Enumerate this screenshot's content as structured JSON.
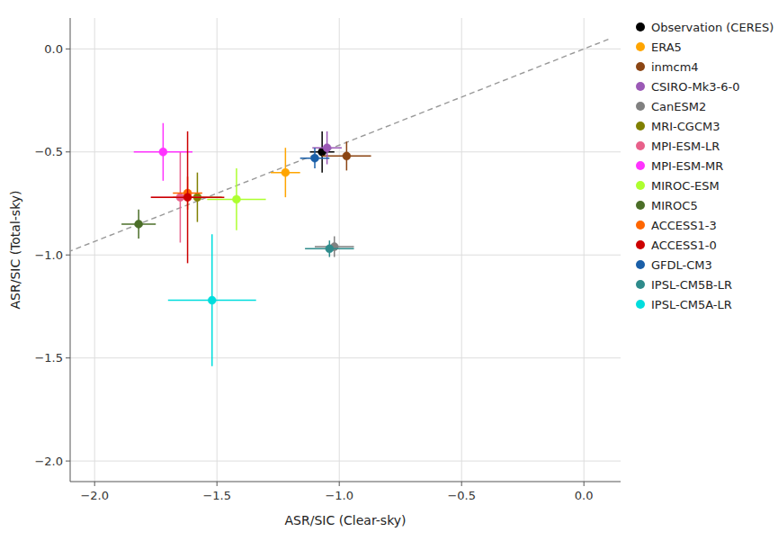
{
  "chart_data": {
    "type": "scatter",
    "xlabel": "ASR/SIC (Clear-sky)",
    "ylabel": "ASR/SIC (Total-sky)",
    "xlim": [
      -2.1,
      0.15
    ],
    "ylim": [
      -2.1,
      0.15
    ],
    "xticks": [
      {
        "value": -2.0,
        "label": "−2.0"
      },
      {
        "value": -1.5,
        "label": "−1.5"
      },
      {
        "value": -1.0,
        "label": "−1.0"
      },
      {
        "value": -0.5,
        "label": "−0.5"
      },
      {
        "value": 0.0,
        "label": "0.0"
      }
    ],
    "yticks": [
      {
        "value": -2.0,
        "label": "−2.0"
      },
      {
        "value": -1.5,
        "label": "−1.5"
      },
      {
        "value": -1.0,
        "label": "−1.0"
      },
      {
        "value": -0.5,
        "label": "−0.5"
      },
      {
        "value": 0.0,
        "label": "0.0"
      }
    ],
    "grid": true,
    "legend": "right",
    "marker": "circle",
    "series": [
      {
        "type": "line",
        "line_style": "dashed",
        "color": "#999999",
        "x": [
          0.1,
          -2.1
        ],
        "values": [
          0.04672897196261682,
          -0.9813084112149533
        ]
      },
      {
        "name": "Observation (CERES)",
        "color": "#000000",
        "x": [
          -1.07
        ],
        "values": [
          -0.5
        ],
        "xerr": [
          0.05
        ],
        "yerr": [
          0.1
        ]
      },
      {
        "name": "ERA5",
        "color": "#FFA500",
        "x": [
          -1.22
        ],
        "values": [
          -0.6
        ],
        "xerr": [
          0.06
        ],
        "yerr": [
          0.12
        ]
      },
      {
        "name": "inmcm4",
        "color": "#8B4513",
        "x": [
          -0.97
        ],
        "values": [
          -0.52
        ],
        "xerr": [
          0.1
        ],
        "yerr": [
          0.07
        ]
      },
      {
        "name": "CSIRO-Mk3-6-0",
        "color": "#9B59B6",
        "x": [
          -1.05
        ],
        "values": [
          -0.48
        ],
        "xerr": [
          0.06
        ],
        "yerr": [
          0.08
        ]
      },
      {
        "name": "CanESM2",
        "color": "#808080",
        "x": [
          -1.02
        ],
        "values": [
          -0.96
        ],
        "xerr": [
          0.08
        ],
        "yerr": [
          0.05
        ]
      },
      {
        "name": "MRI-CGCM3",
        "color": "#808000",
        "x": [
          -1.58
        ],
        "values": [
          -0.72
        ],
        "xerr": [
          0.1
        ],
        "yerr": [
          0.12
        ]
      },
      {
        "name": "MPI-ESM-LR",
        "color": "#E8608A",
        "x": [
          -1.65
        ],
        "values": [
          -0.72
        ],
        "xerr": [
          0.12
        ],
        "yerr": [
          0.22
        ]
      },
      {
        "name": "MPI-ESM-MR",
        "color": "#FF33FF",
        "x": [
          -1.72
        ],
        "values": [
          -0.5
        ],
        "xerr": [
          0.12
        ],
        "yerr": [
          0.14
        ]
      },
      {
        "name": "MIROC-ESM",
        "color": "#ADFF2F",
        "x": [
          -1.42
        ],
        "values": [
          -0.73
        ],
        "xerr": [
          0.12
        ],
        "yerr": [
          0.15
        ]
      },
      {
        "name": "MIROC5",
        "color": "#4B6E28",
        "x": [
          -1.82
        ],
        "values": [
          -0.85
        ],
        "xerr": [
          0.07
        ],
        "yerr": [
          0.07
        ]
      },
      {
        "name": "ACCESS1-3",
        "color": "#FF6600",
        "x": [
          -1.62
        ],
        "values": [
          -0.7
        ],
        "xerr": [
          0.06
        ],
        "yerr": [
          0.08
        ]
      },
      {
        "name": "ACCESS1-0",
        "color": "#CC0000",
        "x": [
          -1.62
        ],
        "values": [
          -0.72
        ],
        "xerr": [
          0.15
        ],
        "yerr": [
          0.32
        ]
      },
      {
        "name": "GFDL-CM3",
        "color": "#1A5FA8",
        "x": [
          -1.1
        ],
        "values": [
          -0.53
        ],
        "xerr": [
          0.06
        ],
        "yerr": [
          0.05
        ]
      },
      {
        "name": "IPSL-CM5B-LR",
        "color": "#2E8B8B",
        "x": [
          -1.04
        ],
        "values": [
          -0.97
        ],
        "xerr": [
          0.1
        ],
        "yerr": [
          0.04
        ]
      },
      {
        "name": "IPSL-CM5A-LR",
        "color": "#00DDDD",
        "x": [
          -1.52
        ],
        "values": [
          -1.22
        ],
        "xerr": [
          0.18
        ],
        "yerr": [
          0.32
        ]
      }
    ]
  }
}
